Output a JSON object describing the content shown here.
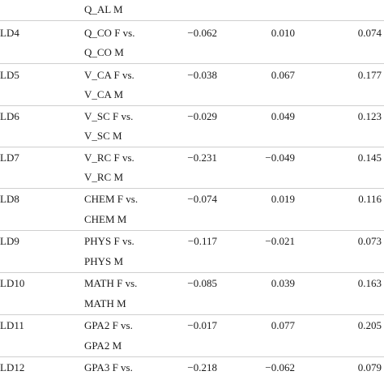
{
  "table": {
    "top_continuation": "Q_AL M",
    "rows": [
      {
        "id": "LD4",
        "comparison": "Q_CO F vs.",
        "comparison_cont": "Q_CO M",
        "v1": "−0.062",
        "v2": "0.010",
        "v3": "0.074"
      },
      {
        "id": "LD5",
        "comparison": "V_CA F vs.",
        "comparison_cont": "V_CA M",
        "v1": "−0.038",
        "v2": "0.067",
        "v3": "0.177"
      },
      {
        "id": "LD6",
        "comparison": "V_SC F vs.",
        "comparison_cont": "V_SC M",
        "v1": "−0.029",
        "v2": "0.049",
        "v3": "0.123"
      },
      {
        "id": "LD7",
        "comparison": "V_RC F vs.",
        "comparison_cont": "V_RC M",
        "v1": "−0.231",
        "v2": "−0.049",
        "v3": "0.145"
      },
      {
        "id": "LD8",
        "comparison": "CHEM F vs.",
        "comparison_cont": "CHEM M",
        "v1": "−0.074",
        "v2": "0.019",
        "v3": "0.116"
      },
      {
        "id": "LD9",
        "comparison": "PHYS F vs.",
        "comparison_cont": "PHYS M",
        "v1": "−0.117",
        "v2": "−0.021",
        "v3": "0.073"
      },
      {
        "id": "LD10",
        "comparison": "MATH F vs.",
        "comparison_cont": "MATH M",
        "v1": "−0.085",
        "v2": "0.039",
        "v3": "0.163"
      },
      {
        "id": "LD11",
        "comparison": "GPA2 F vs.",
        "comparison_cont": "GPA2 M",
        "v1": "−0.017",
        "v2": "0.077",
        "v3": "0.205"
      },
      {
        "id": "LD12",
        "comparison": "GPA3 F vs.",
        "comparison_cont": "",
        "v1": "−0.218",
        "v2": "−0.062",
        "v3": "0.079"
      }
    ]
  }
}
